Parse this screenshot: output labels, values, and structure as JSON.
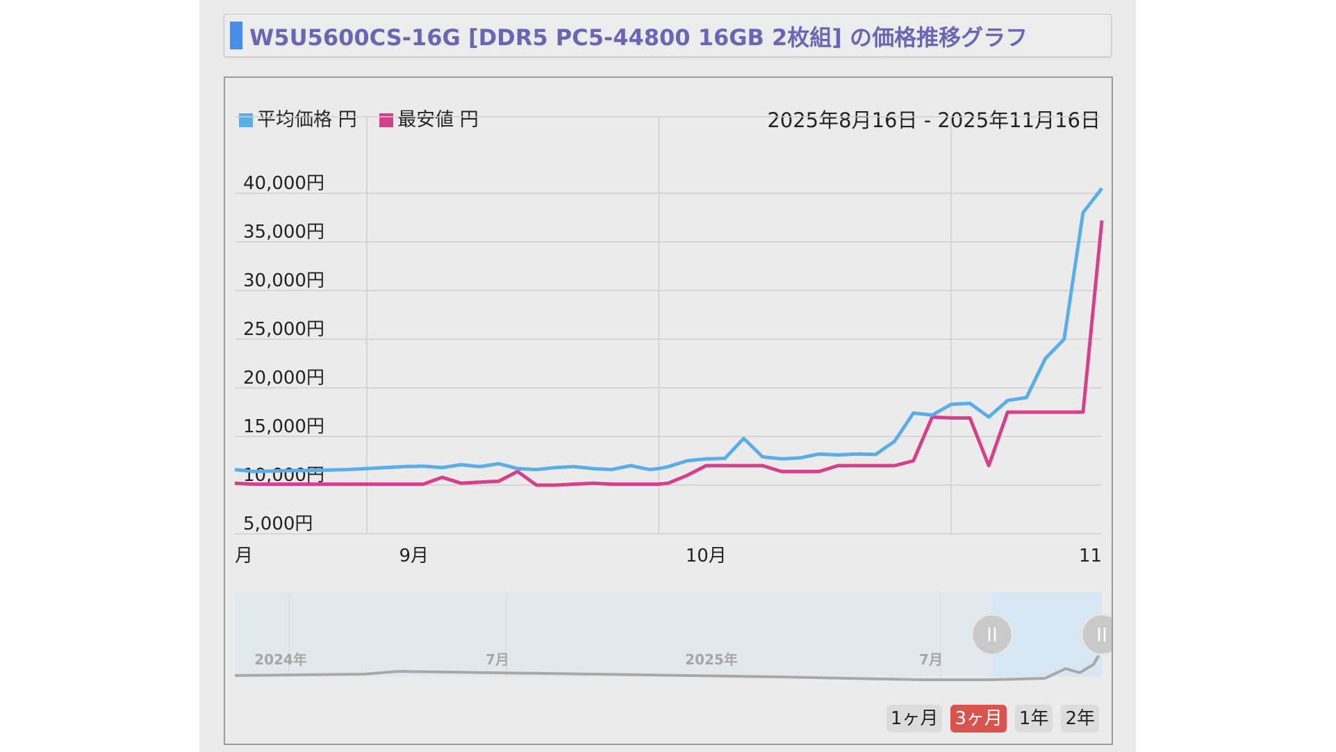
{
  "header": {
    "title": "W5U5600CS-16G [DDR5 PC5-44800 16GB 2枚組] の価格推移グラフ",
    "accent_color": "#4a8de8"
  },
  "legend": {
    "avg_label": "平均価格 円",
    "min_label": "最安値 円",
    "avg_color": "#5aaee8",
    "min_color": "#d6408a"
  },
  "date_range": "2025年8月16日 - 2025年11月16日",
  "navigator": {
    "labels": [
      "2024年",
      "7月",
      "2025年",
      "7月"
    ]
  },
  "range_buttons": [
    "1ヶ月",
    "3ヶ月",
    "1年",
    "2年"
  ],
  "range_selected": "3ヶ月",
  "chart_data": {
    "type": "line",
    "title": "",
    "x_tick_labels": [
      "月",
      "9月",
      "10月",
      "11"
    ],
    "y_tick_labels": [
      "5,000円",
      "10,000円",
      "15,000円",
      "20,000円",
      "25,000円",
      "30,000円",
      "35,000円",
      "40,000円"
    ],
    "ylim": [
      5000,
      45000
    ],
    "grid": true,
    "legend_position": "top-left",
    "x": [
      "2025-08-16",
      "2025-08-18",
      "2025-08-20",
      "2025-08-22",
      "2025-08-24",
      "2025-08-26",
      "2025-08-28",
      "2025-08-30",
      "2025-09-01",
      "2025-09-03",
      "2025-09-05",
      "2025-09-07",
      "2025-09-09",
      "2025-09-11",
      "2025-09-13",
      "2025-09-15",
      "2025-09-17",
      "2025-09-19",
      "2025-09-21",
      "2025-09-23",
      "2025-09-25",
      "2025-09-27",
      "2025-09-29",
      "2025-09-30",
      "2025-10-01",
      "2025-10-03",
      "2025-10-05",
      "2025-10-07",
      "2025-10-09",
      "2025-10-11",
      "2025-10-13",
      "2025-10-15",
      "2025-10-17",
      "2025-10-19",
      "2025-10-21",
      "2025-10-23",
      "2025-10-25",
      "2025-10-27",
      "2025-10-29",
      "2025-10-31",
      "2025-11-02",
      "2025-11-04",
      "2025-11-06",
      "2025-11-08",
      "2025-11-10",
      "2025-11-12",
      "2025-11-14",
      "2025-11-16"
    ],
    "series": [
      {
        "name": "平均価格 円",
        "color": "#5aaee8",
        "values": [
          11600,
          11400,
          11450,
          11500,
          11500,
          11550,
          11600,
          11700,
          11800,
          11900,
          11950,
          11800,
          12100,
          11900,
          12200,
          11700,
          11600,
          11800,
          11900,
          11700,
          11600,
          12000,
          11600,
          11700,
          11900,
          12500,
          12700,
          12750,
          14800,
          12900,
          12700,
          12800,
          13200,
          13100,
          13200,
          13150,
          14500,
          17400,
          17200,
          18300,
          18400,
          17000,
          18700,
          19000,
          23000,
          25000,
          38000,
          40500
        ]
      },
      {
        "name": "最安値 円",
        "color": "#d6408a",
        "values": [
          10200,
          10100,
          10100,
          10100,
          10100,
          10100,
          10100,
          10100,
          10100,
          10100,
          10100,
          10800,
          10200,
          10300,
          10400,
          11400,
          10000,
          10000,
          10100,
          10200,
          10100,
          10100,
          10100,
          10100,
          10200,
          11000,
          12000,
          12000,
          12000,
          12000,
          11400,
          11400,
          11400,
          12000,
          12000,
          12000,
          12000,
          12500,
          17000,
          16900,
          16900,
          12000,
          17500,
          17500,
          17500,
          17500,
          17500,
          37200
        ]
      }
    ]
  }
}
